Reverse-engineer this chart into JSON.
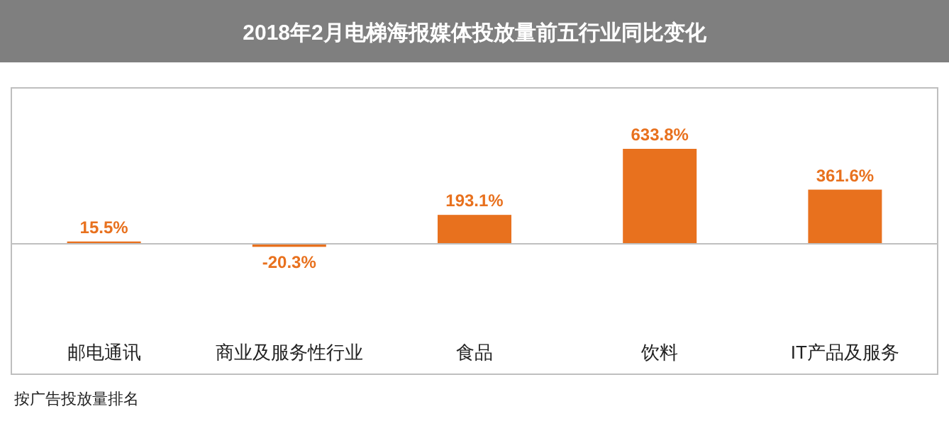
{
  "chart_data": {
    "type": "bar",
    "title": "2018年2月电梯海报媒体投放量前五行业同比变化",
    "categories": [
      "邮电通讯",
      "商业及服务性行业",
      "食品",
      "饮料",
      "IT产品及服务"
    ],
    "values": [
      15.5,
      -20.3,
      193.1,
      633.8,
      361.6
    ],
    "value_labels": [
      "15.5%",
      "-20.3%",
      "193.1%",
      "633.8%",
      "361.6%"
    ],
    "color": "#e8711e",
    "annotations": [
      "按广告投放量排名"
    ]
  }
}
